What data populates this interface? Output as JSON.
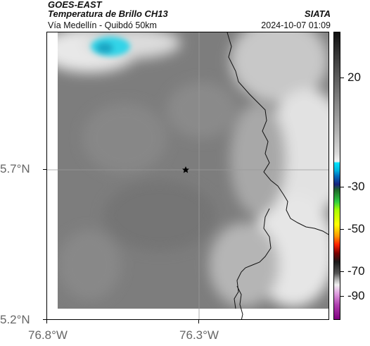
{
  "header": {
    "satellite": "GOES-EAST",
    "product": "Temperatura de Brillo CH13",
    "route": "Vía Medellín - Quibdó 50km",
    "organization": "SIATA",
    "timestamp": "2024-10-07 01:09"
  },
  "map": {
    "lat_ticks": [
      "5.7°N",
      "5.2°N"
    ],
    "lon_ticks": [
      "76.8°W",
      "76.3°W"
    ],
    "marker_icon": "star-icon"
  },
  "colorbar": {
    "labels": [
      "20",
      "-30",
      "-50",
      "-70",
      "-90"
    ]
  }
}
